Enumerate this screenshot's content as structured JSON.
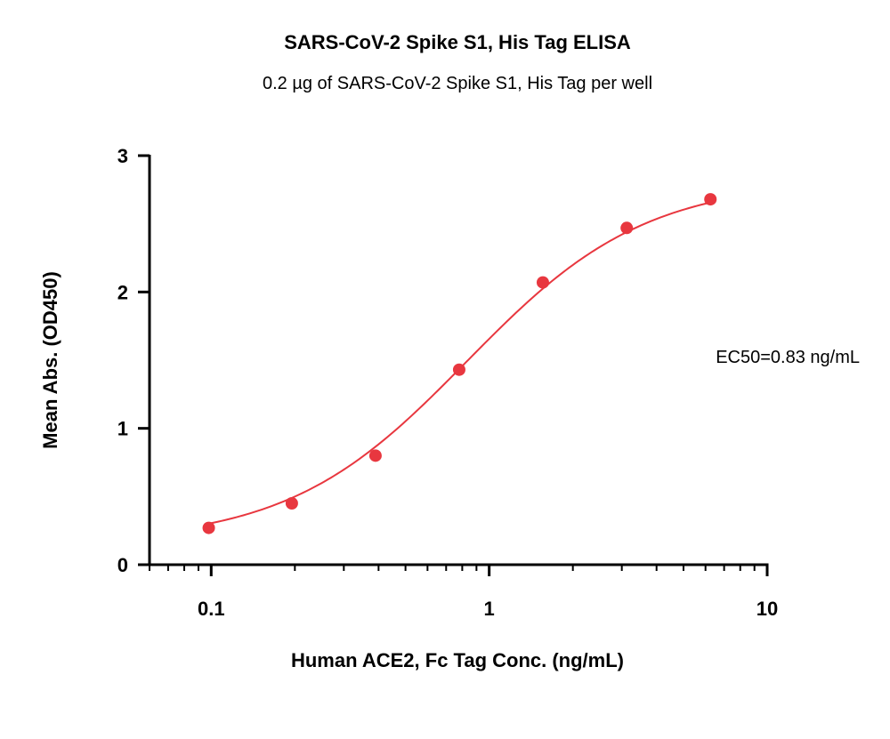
{
  "chart_data": {
    "type": "scatter",
    "title": "SARS-CoV-2 Spike S1, His Tag ELISA",
    "subtitle": "0.2 µg of SARS-CoV-2 Spike S1, His Tag per well",
    "xlabel": "Human ACE2, Fc Tag Conc. (ng/mL)",
    "ylabel": "Mean Abs. (OD450)",
    "x_scale": "log",
    "xlim": [
      0.06,
      10
    ],
    "ylim": [
      0,
      3
    ],
    "x_ticks": [
      {
        "value": 0.1,
        "label": "0.1"
      },
      {
        "value": 1,
        "label": "1"
      },
      {
        "value": 10,
        "label": "10"
      }
    ],
    "y_ticks": [
      {
        "value": 0,
        "label": "0"
      },
      {
        "value": 1,
        "label": "1"
      },
      {
        "value": 2,
        "label": "2"
      },
      {
        "value": 3,
        "label": "3"
      }
    ],
    "grid": false,
    "legend": "none",
    "series": [
      {
        "color": "#e8373f",
        "points": [
          {
            "x": 0.098,
            "y": 0.27
          },
          {
            "x": 0.195,
            "y": 0.45
          },
          {
            "x": 0.39,
            "y": 0.8
          },
          {
            "x": 0.78,
            "y": 1.43
          },
          {
            "x": 1.56,
            "y": 2.07
          },
          {
            "x": 3.125,
            "y": 2.47
          },
          {
            "x": 6.25,
            "y": 2.68
          }
        ],
        "fit": {
          "model": "4PL",
          "bottom": 0.16,
          "top": 2.82,
          "ec50": 0.83,
          "hill": 1.35,
          "x_range": [
            0.098,
            6.25
          ]
        }
      }
    ],
    "annotations": [
      {
        "text": "EC50=0.83 ng/mL"
      }
    ]
  }
}
